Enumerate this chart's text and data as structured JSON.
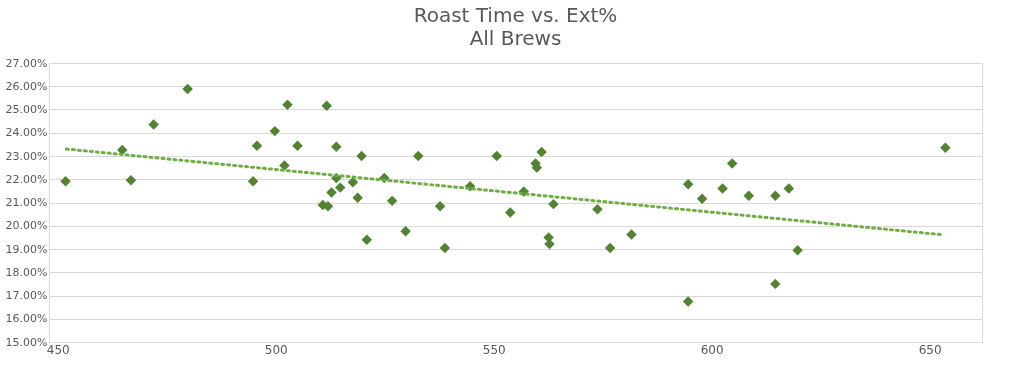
{
  "chart_data": {
    "type": "scatter",
    "title": "Roast Time vs. Ext%",
    "subtitle": "All Brews",
    "xlim": [
      448,
      662
    ],
    "xticks": [
      450,
      500,
      550,
      600,
      650
    ],
    "ylim": [
      15,
      27
    ],
    "yticks": [
      {
        "value": 15,
        "label": "15.00%"
      },
      {
        "value": 16,
        "label": "16.00%"
      },
      {
        "value": 17,
        "label": "17.00%"
      },
      {
        "value": 18,
        "label": "18.00%"
      },
      {
        "value": 19,
        "label": "19.00%"
      },
      {
        "value": 20,
        "label": "20.00%"
      },
      {
        "value": 21,
        "label": "21.00%"
      },
      {
        "value": 22,
        "label": "22.00%"
      },
      {
        "value": 23,
        "label": "23.00%"
      },
      {
        "value": 24,
        "label": "24.00%"
      },
      {
        "value": 25,
        "label": "25.00%"
      },
      {
        "value": 26,
        "label": "26.00%"
      },
      {
        "value": 27,
        "label": "27.00%"
      }
    ],
    "grid": "y",
    "legend": false,
    "series": [
      {
        "type": "scatter",
        "marker": "diamond",
        "color": "#548235",
        "x": [
          451.8,
          464.8,
          466.8,
          472,
          479.8,
          494.8,
          495.7,
          499.8,
          502,
          502.7,
          505,
          510.8,
          512,
          511.7,
          512.8,
          513.9,
          513.9,
          514.8,
          517.7,
          518.8,
          519.7,
          520.9,
          524.9,
          526.7,
          529.8,
          532.7,
          537.7,
          538.8,
          544.6,
          550.7,
          553.8,
          556.9,
          559.6,
          559.9,
          561,
          562.6,
          562.8,
          563.7,
          573.8,
          576.7,
          581.6,
          594.6,
          594.6,
          597.8,
          602.5,
          604.7,
          608.5,
          614.6,
          614.6,
          617.7,
          619.7,
          653.6
        ],
        "values": [
          21.91,
          23.26,
          21.96,
          24.35,
          25.88,
          21.91,
          23.44,
          24.07,
          22.59,
          25.2,
          23.44,
          20.89,
          20.84,
          25.16,
          21.43,
          23.4,
          22.05,
          21.64,
          21.87,
          21.2,
          23.0,
          19.4,
          22.05,
          21.07,
          19.76,
          23.0,
          20.84,
          19.04,
          21.7,
          23.0,
          20.57,
          21.47,
          22.68,
          22.5,
          23.17,
          19.5,
          19.22,
          20.93,
          20.71,
          19.04,
          19.62,
          21.78,
          16.74,
          21.16,
          21.6,
          22.68,
          21.29,
          21.29,
          17.5,
          21.6,
          18.95,
          23.35
        ]
      },
      {
        "type": "line",
        "line_style": "dotted",
        "marker": "none",
        "color": "#70ad47",
        "x": [
          452,
          652.5
        ],
        "values": [
          23.3,
          19.62
        ]
      }
    ]
  }
}
